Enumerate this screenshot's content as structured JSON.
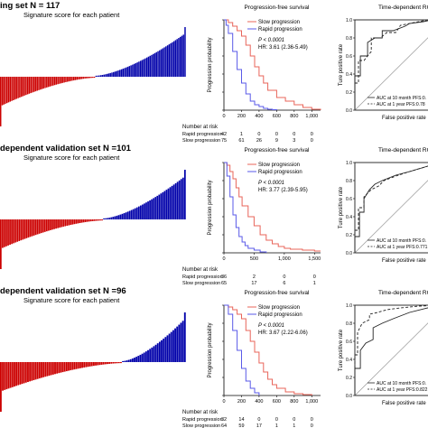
{
  "rows": [
    {
      "set_title": "ing set N = 117",
      "signature_label": "Signature score for each patient",
      "km": {
        "title": "Progression-free survival",
        "ylabel": "Progression probability",
        "legend": [
          "Slow progression",
          "Rapid progression"
        ],
        "stats": [
          "P < 0.0001",
          "HR: 3.61 (2.36-5.49)"
        ],
        "xticks": [
          "0",
          "200",
          "400",
          "600",
          "800",
          "1,000"
        ],
        "risk": {
          "header": "Number at risk",
          "rows": [
            {
              "label": "Rapid progression",
              "values": [
                "42",
                "1",
                "0",
                "0",
                "0",
                "0"
              ]
            },
            {
              "label": "Slow progression",
              "values": [
                "75",
                "61",
                "26",
                "9",
                "3",
                "0"
              ]
            }
          ]
        }
      },
      "roc": {
        "title": "Time-dependent ROC",
        "ylabel": "Ture positive rate",
        "xlabel": "False positive rate",
        "legend": [
          "AUC at 10 month PFS:0.",
          "AUC at 1 year PFS:0.78"
        ]
      }
    },
    {
      "set_title": "dependent validation set N =101",
      "signature_label": "Signature score for each patient",
      "km": {
        "title": "Progression-free survival",
        "ylabel": "Progression probability",
        "legend": [
          "Slow progression",
          "Rapid progression"
        ],
        "stats": [
          "P < 0.0001",
          "HR: 3.77 (2.39-5.95)"
        ],
        "xticks": [
          "0",
          "500",
          "1,000",
          "1,500"
        ],
        "risk": {
          "header": "Number at risk",
          "rows": [
            {
              "label": "Rapid progression",
              "values": [
                "36",
                "2",
                "0",
                "0"
              ]
            },
            {
              "label": "Slow progression",
              "values": [
                "65",
                "17",
                "6",
                "1"
              ]
            }
          ]
        }
      },
      "roc": {
        "title": "Time-dependent ROC",
        "ylabel": "Ture positive rate",
        "xlabel": "False positive rate",
        "legend": [
          "AUC at 10 month PFS:0.",
          "AUC at 1 year PFS:0.771"
        ]
      }
    },
    {
      "set_title": "dependent validation set N =96",
      "signature_label": "Signature score for each patient",
      "km": {
        "title": "Progression-free survival",
        "ylabel": "Progression probability",
        "legend": [
          "Slow progression",
          "Rapid progression"
        ],
        "stats": [
          "P < 0.0001",
          "HR: 3.67 (2.22-6.06)"
        ],
        "xticks": [
          "0",
          "200",
          "400",
          "600",
          "800",
          "1,000"
        ],
        "risk": {
          "header": "Number at risk",
          "rows": [
            {
              "label": "Rapid progression",
              "values": [
                "32",
                "14",
                "0",
                "0",
                "0",
                "0"
              ]
            },
            {
              "label": "Slow progression",
              "values": [
                "64",
                "59",
                "17",
                "1",
                "1",
                "0"
              ]
            }
          ]
        }
      },
      "roc": {
        "title": "Time-dependent ROC",
        "ylabel": "Ture positive rate",
        "xlabel": "False positive rate",
        "legend": [
          "AUC at 10 month PFS:0.",
          "AUC at 1 year PFS:0.822"
        ]
      }
    }
  ],
  "colors": {
    "low_bar": "#cc0000",
    "high_bar": "#0000aa",
    "slow_curve": "#e8645a",
    "rapid_curve": "#5a5ae8",
    "roc_line": "#222222",
    "diagonal": "#999999"
  },
  "chart_data": [
    {
      "type": "bar",
      "panel": "signature-1",
      "count": 117,
      "low_count": 60,
      "value_range": [
        -1,
        1
      ]
    },
    {
      "type": "line",
      "panel": "km-1",
      "xlim": [
        0,
        1100
      ],
      "ylim": [
        0,
        1
      ],
      "series": [
        {
          "name": "Slow progression",
          "x": [
            0,
            50,
            100,
            150,
            200,
            250,
            300,
            350,
            400,
            450,
            500,
            600,
            700,
            800,
            900,
            1000,
            1100
          ],
          "y": [
            1,
            0.97,
            0.93,
            0.88,
            0.82,
            0.72,
            0.6,
            0.48,
            0.38,
            0.3,
            0.22,
            0.14,
            0.1,
            0.06,
            0.03,
            0.01,
            0
          ]
        },
        {
          "name": "Rapid progression",
          "x": [
            0,
            25,
            50,
            100,
            150,
            200,
            250,
            300,
            350,
            400,
            450,
            500,
            550,
            600
          ],
          "y": [
            1,
            0.94,
            0.85,
            0.65,
            0.45,
            0.3,
            0.18,
            0.1,
            0.06,
            0.04,
            0.02,
            0.01,
            0.005,
            0
          ]
        }
      ]
    },
    {
      "type": "line",
      "panel": "roc-1",
      "xlim": [
        0,
        1
      ],
      "ylim": [
        0,
        1
      ],
      "series": [
        {
          "name": "AUC at 10 month PFS",
          "x": [
            0,
            0,
            0.06,
            0.06,
            0.14,
            0.14,
            0.22,
            0.3,
            0.3,
            0.42,
            0.55,
            0.6,
            0.75,
            0.85,
            1
          ],
          "y": [
            0,
            0.38,
            0.38,
            0.6,
            0.6,
            0.75,
            0.8,
            0.8,
            0.88,
            0.88,
            0.93,
            0.96,
            0.98,
            1,
            1
          ]
        },
        {
          "name": "AUC at 1 year PFS",
          "x": [
            0,
            0,
            0.04,
            0.04,
            0.1,
            0.18,
            0.18,
            0.28,
            0.35,
            0.45,
            0.5,
            0.65,
            0.8,
            1
          ],
          "y": [
            0,
            0.3,
            0.3,
            0.55,
            0.55,
            0.65,
            0.8,
            0.8,
            0.86,
            0.86,
            0.94,
            0.97,
            1,
            1
          ]
        }
      ]
    },
    {
      "type": "bar",
      "panel": "signature-2",
      "count": 101,
      "low_count": 56,
      "value_range": [
        -1,
        1
      ]
    },
    {
      "type": "line",
      "panel": "km-2",
      "xlim": [
        0,
        1600
      ],
      "ylim": [
        0,
        1
      ],
      "series": [
        {
          "name": "Slow progression",
          "x": [
            0,
            50,
            100,
            150,
            200,
            250,
            300,
            400,
            500,
            600,
            700,
            800,
            900,
            1000,
            1100,
            1300,
            1500,
            1600
          ],
          "y": [
            1,
            0.97,
            0.9,
            0.82,
            0.72,
            0.62,
            0.52,
            0.4,
            0.3,
            0.2,
            0.14,
            0.1,
            0.07,
            0.05,
            0.04,
            0.03,
            0.02,
            0.02
          ]
        },
        {
          "name": "Rapid progression",
          "x": [
            0,
            50,
            100,
            150,
            200,
            250,
            300,
            350,
            400,
            500,
            600,
            700
          ],
          "y": [
            1,
            0.85,
            0.62,
            0.42,
            0.28,
            0.18,
            0.12,
            0.08,
            0.05,
            0.03,
            0.01,
            0
          ]
        }
      ]
    },
    {
      "type": "line",
      "panel": "roc-2",
      "xlim": [
        0,
        1
      ],
      "ylim": [
        0,
        1
      ],
      "series": [
        {
          "name": "AUC at 10 month PFS",
          "x": [
            0,
            0,
            0.05,
            0.05,
            0.1,
            0.1,
            0.16,
            0.22,
            0.3,
            0.45,
            0.6,
            0.8,
            1
          ],
          "y": [
            0,
            0.18,
            0.18,
            0.45,
            0.45,
            0.6,
            0.7,
            0.76,
            0.8,
            0.86,
            0.9,
            0.96,
            1
          ]
        },
        {
          "name": "AUC at 1 year PFS",
          "x": [
            0,
            0,
            0.04,
            0.04,
            0.1,
            0.1,
            0.18,
            0.26,
            0.32,
            0.45,
            0.6,
            0.8,
            1
          ],
          "y": [
            0,
            0.25,
            0.25,
            0.5,
            0.5,
            0.62,
            0.7,
            0.74,
            0.8,
            0.85,
            0.9,
            0.96,
            1
          ]
        }
      ]
    },
    {
      "type": "bar",
      "panel": "signature-3",
      "count": 96,
      "low_count": 63,
      "value_range": [
        -1,
        1
      ]
    },
    {
      "type": "line",
      "panel": "km-3",
      "xlim": [
        0,
        1100
      ],
      "ylim": [
        0,
        1
      ],
      "series": [
        {
          "name": "Slow progression",
          "x": [
            0,
            50,
            100,
            150,
            200,
            250,
            300,
            350,
            400,
            450,
            500,
            550,
            600,
            700,
            800,
            900,
            1000
          ],
          "y": [
            1,
            0.98,
            0.95,
            0.9,
            0.85,
            0.72,
            0.6,
            0.48,
            0.36,
            0.26,
            0.18,
            0.12,
            0.08,
            0.04,
            0.02,
            0.01,
            0
          ]
        },
        {
          "name": "Rapid progression",
          "x": [
            0,
            50,
            100,
            150,
            200,
            250,
            300,
            350,
            400
          ],
          "y": [
            1,
            0.9,
            0.72,
            0.5,
            0.3,
            0.16,
            0.08,
            0.03,
            0
          ]
        }
      ]
    },
    {
      "type": "line",
      "panel": "roc-3",
      "xlim": [
        0,
        1
      ],
      "ylim": [
        0,
        1
      ],
      "series": [
        {
          "name": "AUC at 10 month PFS",
          "x": [
            0,
            0,
            0.06,
            0.06,
            0.12,
            0.2,
            0.2,
            0.3,
            0.42,
            0.6,
            0.8,
            1
          ],
          "y": [
            0,
            0.3,
            0.3,
            0.5,
            0.58,
            0.62,
            0.75,
            0.8,
            0.85,
            0.92,
            0.97,
            1
          ]
        },
        {
          "name": "AUC at 1 year PFS",
          "x": [
            0,
            0,
            0.03,
            0.03,
            0.08,
            0.16,
            0.16,
            0.25,
            0.35,
            0.5,
            0.7,
            1
          ],
          "y": [
            0,
            0.45,
            0.45,
            0.7,
            0.8,
            0.84,
            0.9,
            0.92,
            0.95,
            0.97,
            0.99,
            1
          ]
        }
      ]
    }
  ]
}
